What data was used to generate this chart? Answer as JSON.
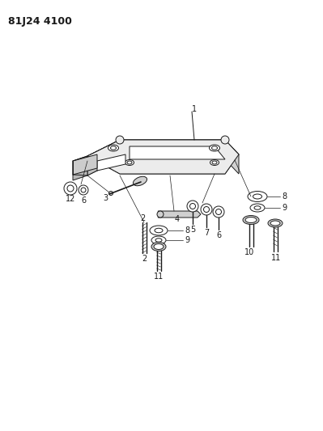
{
  "title": "81J24 4100",
  "bg_color": "#ffffff",
  "line_color": "#1a1a1a",
  "title_fontsize": 9,
  "label_fontsize": 7,
  "fig_width": 3.99,
  "fig_height": 5.33,
  "dpi": 100
}
